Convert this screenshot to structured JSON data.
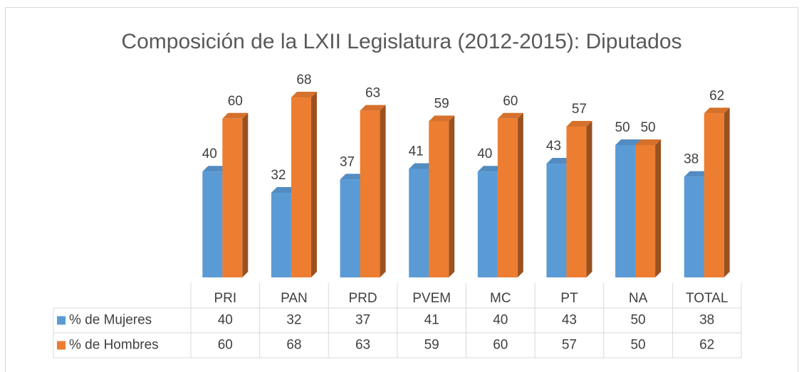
{
  "chart_data": {
    "type": "bar3d",
    "title": "Composición de la LXII Legislatura (2012-2015): Diputados",
    "categories": [
      "PRI",
      "PAN",
      "PRD",
      "PVEM",
      "MC",
      "PT",
      "NA",
      "TOTAL"
    ],
    "series": [
      {
        "name": "% de Mujeres",
        "color": "#5b9bd5",
        "values": [
          40,
          32,
          37,
          41,
          40,
          43,
          50,
          38
        ]
      },
      {
        "name": "% de Hombres",
        "color": "#ed7d31",
        "values": [
          60,
          68,
          63,
          59,
          60,
          57,
          50,
          62
        ]
      }
    ],
    "data_table": true
  }
}
